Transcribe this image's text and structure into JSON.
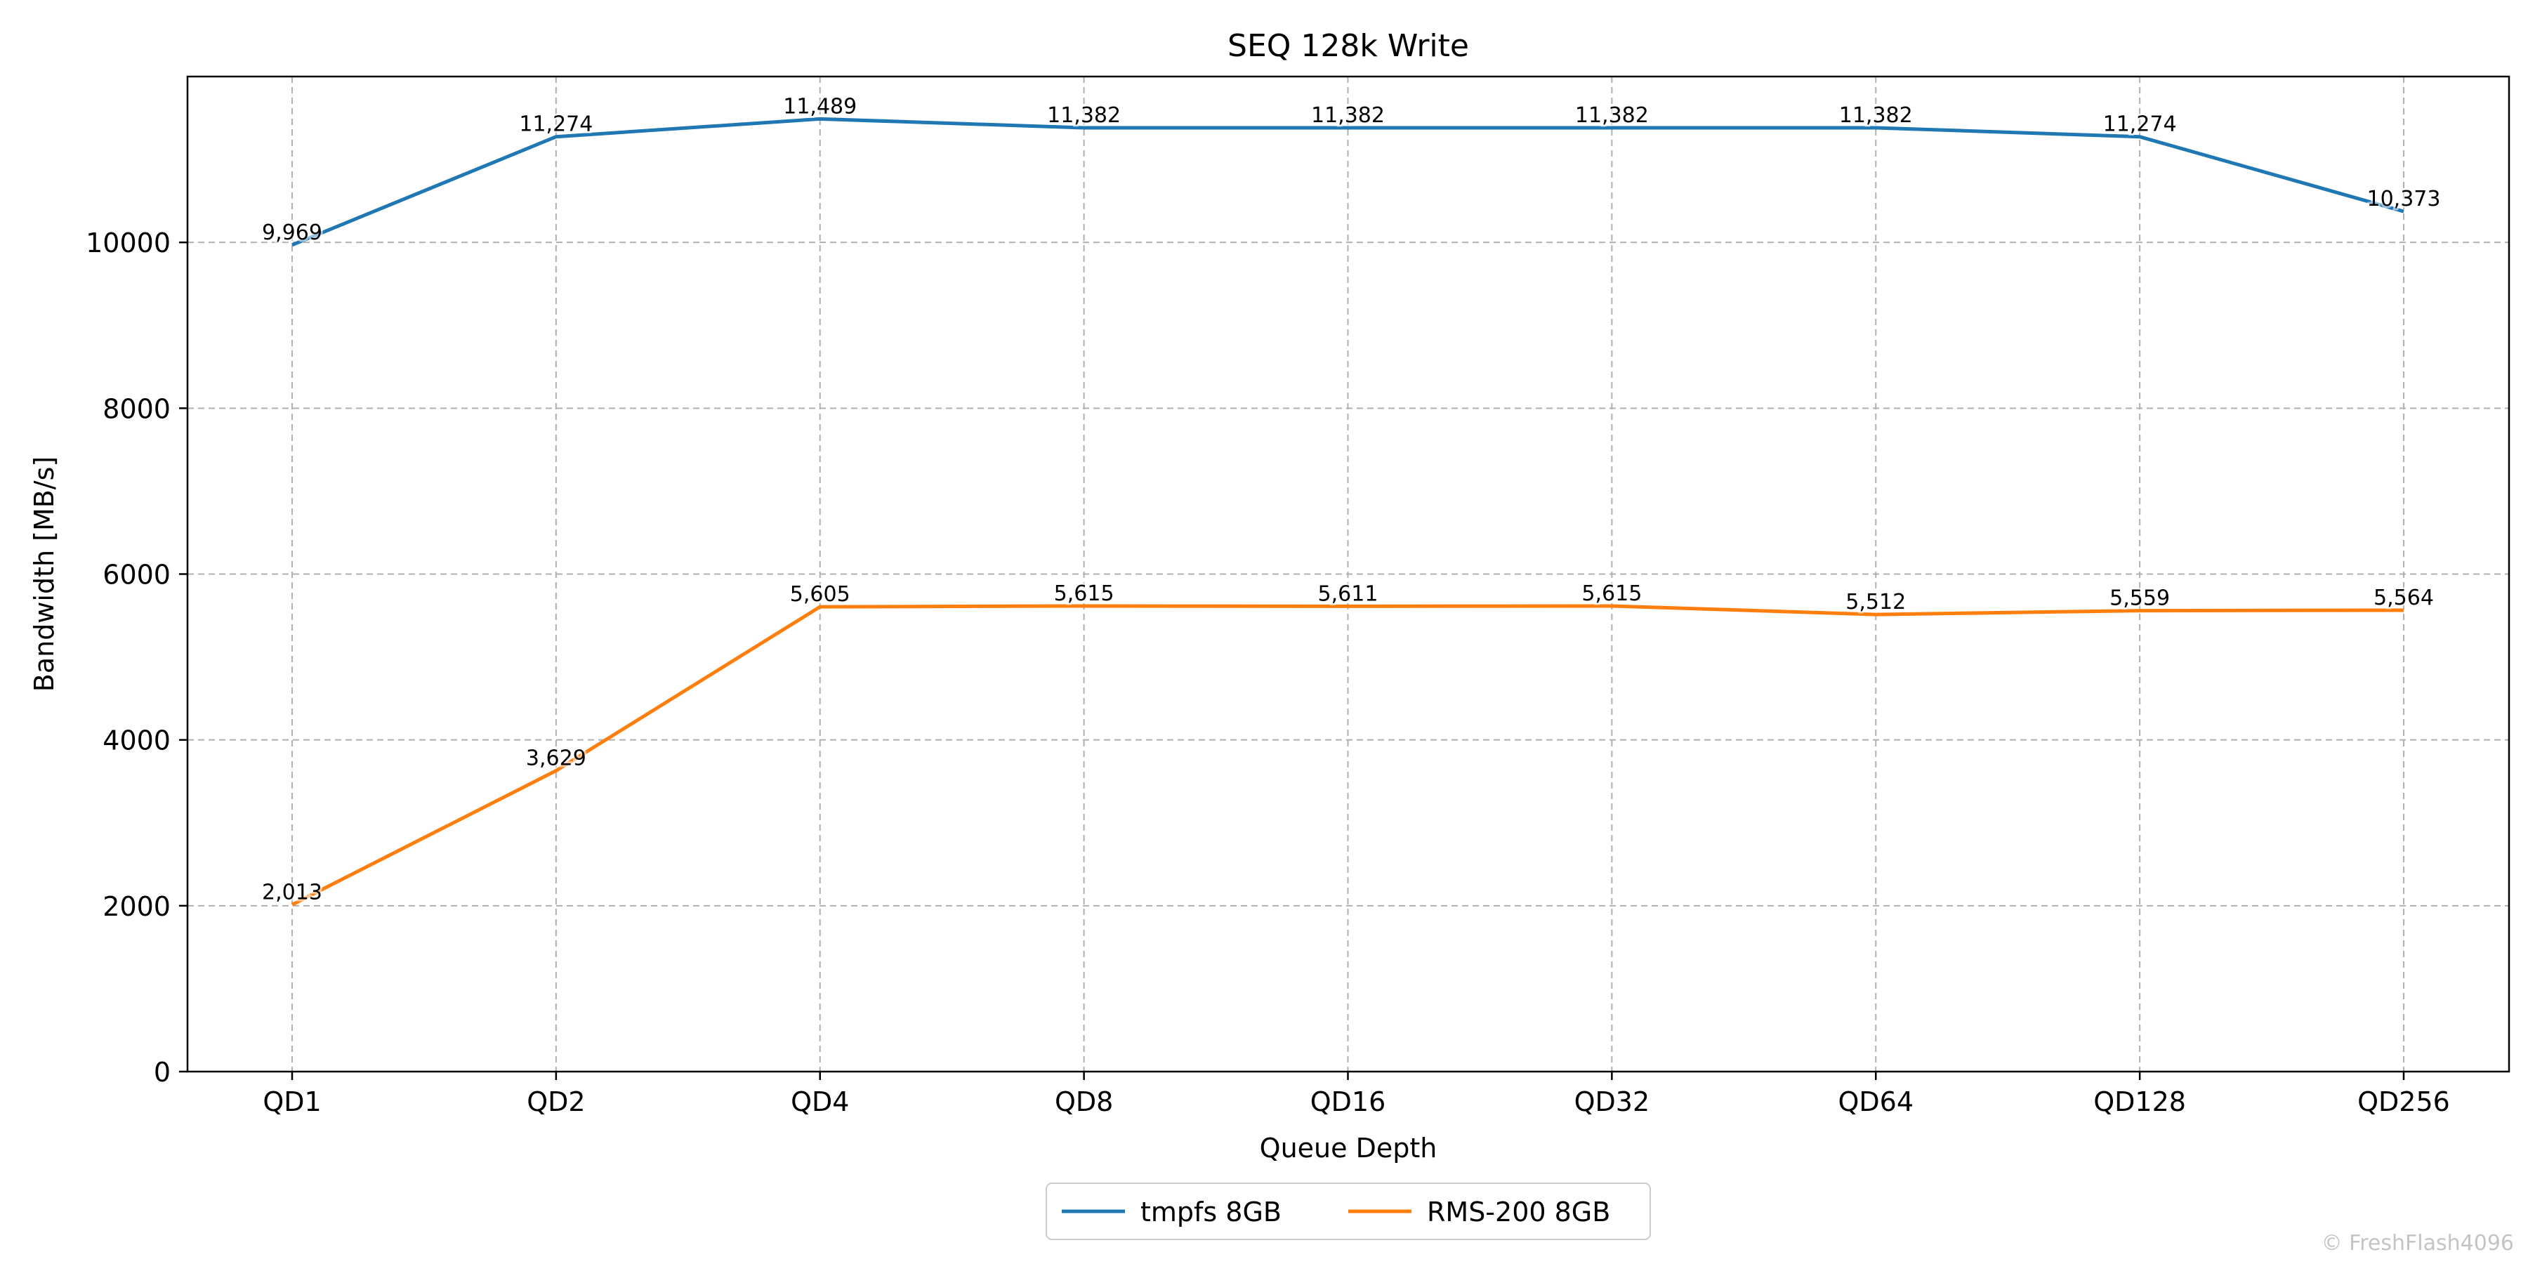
{
  "chart_data": {
    "type": "line",
    "title": "SEQ 128k Write",
    "xlabel": "Queue Depth",
    "ylabel": "Bandwidth [MB/s]",
    "categories": [
      "QD1",
      "QD2",
      "QD4",
      "QD8",
      "QD16",
      "QD32",
      "QD64",
      "QD128",
      "QD256"
    ],
    "ylim": [
      0,
      12000
    ],
    "yticks": [
      0,
      2000,
      4000,
      6000,
      8000,
      10000
    ],
    "grid": true,
    "legend_position": "bottom-center",
    "series": [
      {
        "name": "tmpfs 8GB",
        "color": "#1f77b4",
        "values": [
          9969,
          11274,
          11489,
          11382,
          11382,
          11382,
          11382,
          11274,
          10373
        ],
        "labels": [
          "9,969",
          "11,274",
          "11,489",
          "11,382",
          "11,382",
          "11,382",
          "11,382",
          "11,274",
          "10,373"
        ]
      },
      {
        "name": "RMS-200 8GB",
        "color": "#ff7f0e",
        "values": [
          2013,
          3629,
          5605,
          5615,
          5611,
          5615,
          5512,
          5559,
          5564
        ],
        "labels": [
          "2,013",
          "3,629",
          "5,605",
          "5,615",
          "5,611",
          "5,615",
          "5,512",
          "5,559",
          "5,564"
        ]
      }
    ]
  },
  "watermark": "© FreshFlash4096"
}
